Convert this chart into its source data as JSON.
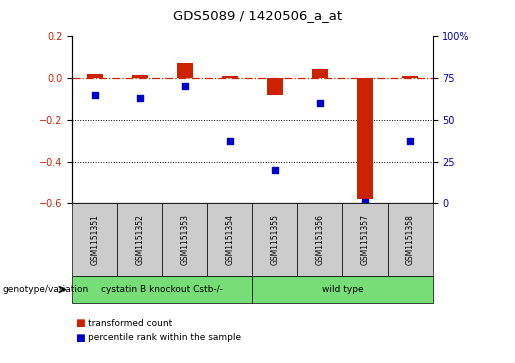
{
  "title": "GDS5089 / 1420506_a_at",
  "samples": [
    "GSM1151351",
    "GSM1151352",
    "GSM1151353",
    "GSM1151354",
    "GSM1151355",
    "GSM1151356",
    "GSM1151357",
    "GSM1151358"
  ],
  "transformed_count": [
    0.02,
    0.015,
    0.07,
    0.01,
    -0.08,
    0.045,
    -0.58,
    0.01
  ],
  "percentile_rank": [
    65,
    63,
    70,
    37,
    20,
    60,
    1,
    37
  ],
  "ylim_left": [
    -0.6,
    0.2
  ],
  "ylim_right": [
    0,
    100
  ],
  "yticks_left": [
    -0.6,
    -0.4,
    -0.2,
    0.0,
    0.2
  ],
  "yticks_right": [
    0,
    25,
    50,
    75,
    100
  ],
  "hline_y": 0.0,
  "dotted_lines": [
    -0.2,
    -0.4
  ],
  "group1_label": "cystatin B knockout Cstb-/-",
  "group2_label": "wild type",
  "group1_color": "#77DD77",
  "group2_color": "#77DD77",
  "bar_color": "#CC2200",
  "scatter_color": "#0000CC",
  "ylabel_left_color": "#CC2200",
  "ylabel_right_color": "#0000BB",
  "genotype_label": "genotype/variation",
  "legend_bar_label": "transformed count",
  "legend_scatter_label": "percentile rank within the sample",
  "hline_color": "#CC2200",
  "sample_box_color": "#CCCCCC",
  "bar_width": 0.35
}
